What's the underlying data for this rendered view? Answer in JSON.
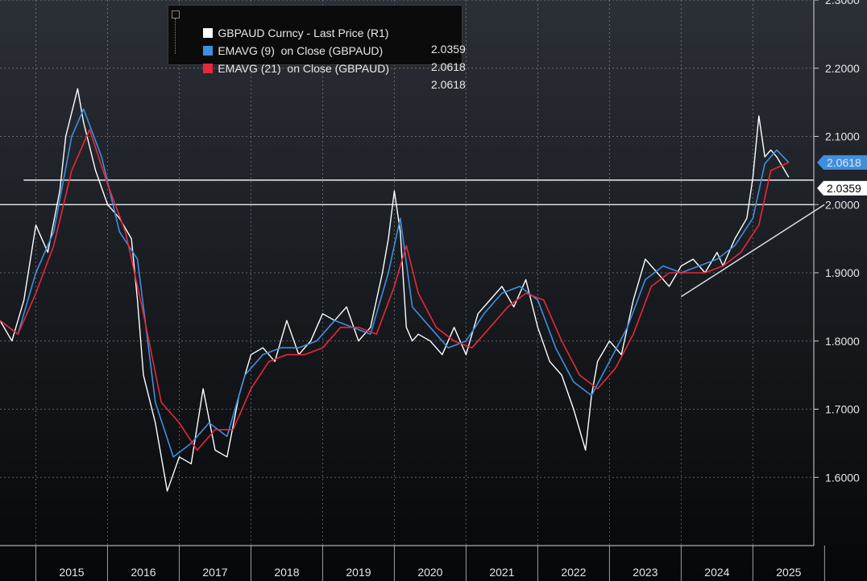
{
  "chart_data": {
    "type": "line",
    "title": "",
    "xlabel": "",
    "ylabel": "",
    "ylim": [
      1.5,
      2.3
    ],
    "y_ticks": [
      "1.6000",
      "1.7000",
      "1.8000",
      "1.9000",
      "2.0000",
      "2.1000",
      "2.2000",
      "2.3000"
    ],
    "x_ticks": [
      "2015",
      "2016",
      "2017",
      "2018",
      "2019",
      "2020",
      "2021",
      "2022",
      "2023",
      "2024",
      "2025"
    ],
    "grid": true,
    "y_axis_side": "right",
    "legend_position": "top-left",
    "legend": [
      {
        "label": "GBPAUD Curncy - Last Price (R1)",
        "value": "2.0359",
        "color": "#ffffff"
      },
      {
        "label": "EMAVG (9)  on Close (GBPAUD)",
        "value": "2.0618",
        "color": "#3d8fe0"
      },
      {
        "label": "EMAVG (21)  on Close (GBPAUD)",
        "value": "2.0618",
        "color": "#e8283a"
      }
    ],
    "last_price_label": "2.0359",
    "ema_label": "2.0618",
    "horizontal_lines": [
      2.0359,
      2.0
    ],
    "trendline": {
      "x": [
        "2024-01-01",
        "2025-12-31"
      ],
      "y": [
        1.865,
        2.0
      ]
    },
    "series": [
      {
        "name": "GBPAUD Curncy - Last Price (R1)",
        "color": "#ffffff",
        "x": [
          "2014-07",
          "2014-09",
          "2014-11",
          "2015-01",
          "2015-03",
          "2015-05",
          "2015-06",
          "2015-08",
          "2015-09",
          "2015-11",
          "2016-01",
          "2016-03",
          "2016-05",
          "2016-06",
          "2016-07",
          "2016-09",
          "2016-11",
          "2017-01",
          "2017-03",
          "2017-05",
          "2017-07",
          "2017-09",
          "2017-11",
          "2018-01",
          "2018-03",
          "2018-05",
          "2018-07",
          "2018-09",
          "2018-11",
          "2019-01",
          "2019-03",
          "2019-05",
          "2019-07",
          "2019-09",
          "2019-11",
          "2019-12",
          "2020-01",
          "2020-02",
          "2020-03",
          "2020-04",
          "2020-05",
          "2020-07",
          "2020-09",
          "2020-11",
          "2021-01",
          "2021-03",
          "2021-05",
          "2021-07",
          "2021-09",
          "2021-11",
          "2022-01",
          "2022-03",
          "2022-05",
          "2022-07",
          "2022-09",
          "2022-10",
          "2022-11",
          "2023-01",
          "2023-03",
          "2023-05",
          "2023-07",
          "2023-09",
          "2023-11",
          "2024-01",
          "2024-03",
          "2024-05",
          "2024-07",
          "2024-08",
          "2024-10",
          "2024-12",
          "2025-01",
          "2025-02",
          "2025-03",
          "2025-04",
          "2025-05",
          "2025-07"
        ],
        "values": [
          1.83,
          1.8,
          1.86,
          1.97,
          1.93,
          2.02,
          2.1,
          2.17,
          2.12,
          2.05,
          2.0,
          1.98,
          1.95,
          1.86,
          1.75,
          1.68,
          1.58,
          1.63,
          1.62,
          1.73,
          1.64,
          1.63,
          1.72,
          1.78,
          1.79,
          1.77,
          1.83,
          1.78,
          1.8,
          1.84,
          1.83,
          1.85,
          1.8,
          1.82,
          1.9,
          1.95,
          2.02,
          1.96,
          1.82,
          1.8,
          1.81,
          1.8,
          1.78,
          1.82,
          1.78,
          1.84,
          1.86,
          1.88,
          1.85,
          1.89,
          1.82,
          1.77,
          1.75,
          1.7,
          1.64,
          1.72,
          1.77,
          1.8,
          1.78,
          1.86,
          1.92,
          1.9,
          1.88,
          1.91,
          1.92,
          1.9,
          1.93,
          1.91,
          1.95,
          1.98,
          2.04,
          2.13,
          2.07,
          2.08,
          2.07,
          2.04
        ]
      },
      {
        "name": "EMAVG (9)  on Close (GBPAUD)",
        "color": "#3d8fe0",
        "x": [
          "2014-07",
          "2014-10",
          "2015-01",
          "2015-04",
          "2015-07",
          "2015-09",
          "2015-12",
          "2016-03",
          "2016-06",
          "2016-09",
          "2016-12",
          "2017-03",
          "2017-06",
          "2017-09",
          "2017-12",
          "2018-03",
          "2018-06",
          "2018-09",
          "2018-12",
          "2019-03",
          "2019-06",
          "2019-09",
          "2019-12",
          "2020-02",
          "2020-04",
          "2020-07",
          "2020-10",
          "2021-01",
          "2021-04",
          "2021-07",
          "2021-10",
          "2022-01",
          "2022-04",
          "2022-07",
          "2022-10",
          "2023-01",
          "2023-04",
          "2023-07",
          "2023-10",
          "2024-01",
          "2024-04",
          "2024-07",
          "2024-10",
          "2025-01",
          "2025-03",
          "2025-05",
          "2025-07"
        ],
        "values": [
          1.83,
          1.81,
          1.9,
          1.96,
          2.1,
          2.14,
          2.07,
          1.96,
          1.92,
          1.71,
          1.63,
          1.65,
          1.68,
          1.66,
          1.75,
          1.78,
          1.79,
          1.79,
          1.8,
          1.83,
          1.82,
          1.81,
          1.9,
          1.98,
          1.85,
          1.82,
          1.79,
          1.8,
          1.84,
          1.87,
          1.88,
          1.86,
          1.79,
          1.74,
          1.72,
          1.77,
          1.82,
          1.89,
          1.91,
          1.9,
          1.91,
          1.92,
          1.94,
          1.98,
          2.06,
          2.08,
          2.0618
        ]
      },
      {
        "name": "EMAVG (21)  on Close (GBPAUD)",
        "color": "#e8283a",
        "x": [
          "2014-07",
          "2014-10",
          "2015-01",
          "2015-04",
          "2015-07",
          "2015-10",
          "2016-01",
          "2016-04",
          "2016-07",
          "2016-10",
          "2017-01",
          "2017-04",
          "2017-07",
          "2017-10",
          "2018-01",
          "2018-04",
          "2018-07",
          "2018-10",
          "2019-01",
          "2019-04",
          "2019-07",
          "2019-10",
          "2020-01",
          "2020-03",
          "2020-05",
          "2020-08",
          "2020-11",
          "2021-02",
          "2021-05",
          "2021-08",
          "2021-11",
          "2022-02",
          "2022-05",
          "2022-08",
          "2022-11",
          "2023-02",
          "2023-05",
          "2023-08",
          "2023-11",
          "2024-02",
          "2024-05",
          "2024-08",
          "2024-11",
          "2025-02",
          "2025-04",
          "2025-07"
        ],
        "values": [
          1.83,
          1.81,
          1.87,
          1.94,
          2.05,
          2.11,
          2.03,
          1.96,
          1.84,
          1.71,
          1.68,
          1.64,
          1.67,
          1.67,
          1.73,
          1.77,
          1.78,
          1.78,
          1.79,
          1.82,
          1.82,
          1.81,
          1.88,
          1.94,
          1.87,
          1.82,
          1.8,
          1.79,
          1.82,
          1.85,
          1.87,
          1.86,
          1.8,
          1.75,
          1.73,
          1.76,
          1.81,
          1.88,
          1.9,
          1.9,
          1.9,
          1.91,
          1.93,
          1.97,
          2.05,
          2.0618
        ]
      }
    ]
  }
}
